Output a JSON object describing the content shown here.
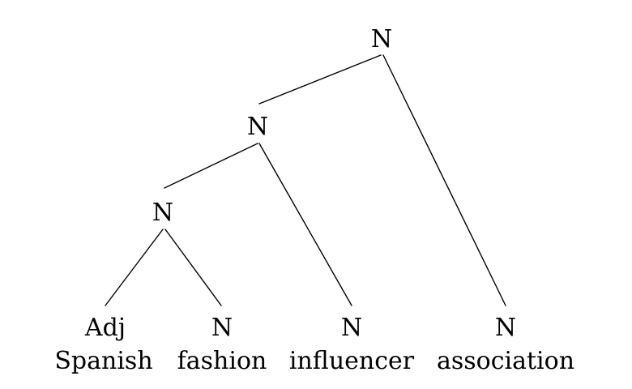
{
  "tree": {
    "nodes": [
      {
        "id": "n-root",
        "label": "N"
      },
      {
        "id": "n-mid",
        "label": "N"
      },
      {
        "id": "n-low",
        "label": "N"
      },
      {
        "id": "leaf-adj",
        "label": "Adj",
        "word": "Spanish"
      },
      {
        "id": "leaf-fashion",
        "label": "N",
        "word": "fashion"
      },
      {
        "id": "leaf-influencer",
        "label": "N",
        "word": "influencer"
      },
      {
        "id": "leaf-association",
        "label": "N",
        "word": "association"
      }
    ],
    "edges": [
      {
        "from": "n-root",
        "to": "n-mid"
      },
      {
        "from": "n-root",
        "to": "leaf-association"
      },
      {
        "from": "n-mid",
        "to": "n-low"
      },
      {
        "from": "n-mid",
        "to": "leaf-influencer"
      },
      {
        "from": "n-low",
        "to": "leaf-adj"
      },
      {
        "from": "n-low",
        "to": "leaf-fashion"
      }
    ]
  }
}
